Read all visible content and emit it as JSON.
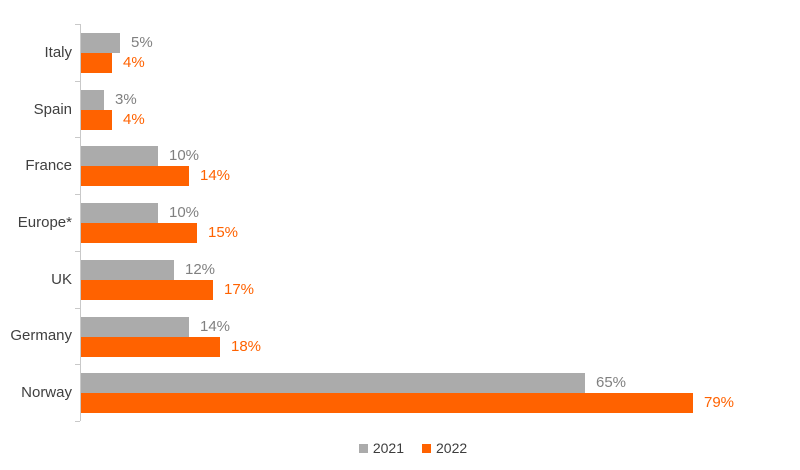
{
  "chart_data": {
    "type": "bar",
    "orientation": "horizontal",
    "title": "",
    "xlabel": "",
    "ylabel": "",
    "categories": [
      "Italy",
      "Spain",
      "France",
      "Europe*",
      "UK",
      "Germany",
      "Norway"
    ],
    "series": [
      {
        "name": "2021",
        "color": "#ababab",
        "label_color": "#808080",
        "values": [
          5,
          3,
          10,
          10,
          12,
          14,
          65
        ]
      },
      {
        "name": "2022",
        "color": "#ff6200",
        "label_color": "#ff6200",
        "values": [
          4,
          4,
          14,
          15,
          17,
          18,
          79
        ]
      }
    ],
    "value_suffix": "%",
    "data_labels": true,
    "grid": false,
    "legend_position": "bottom-center",
    "axis_color": "#c9c9c9",
    "category_label_color": "#404040"
  }
}
